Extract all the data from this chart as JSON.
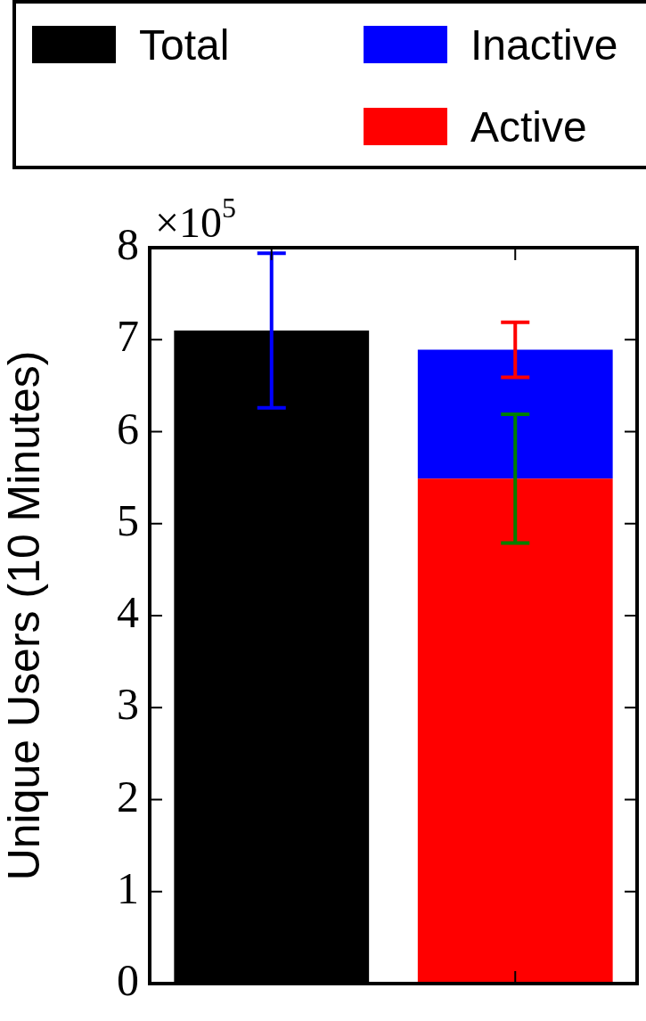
{
  "chart_data": {
    "type": "bar",
    "ylabel": "Unique Users (10 Minutes)",
    "annotations": [
      "×10$^{5}$"
    ],
    "categories": [
      null,
      null
    ],
    "stacked": true,
    "legend": "top",
    "grid": false,
    "ylim": [
      0,
      8
    ],
    "yticks": [
      0,
      1,
      2,
      3,
      4,
      5,
      6,
      7,
      8
    ],
    "series": [
      {
        "name": "Total",
        "color": "#000000",
        "values": [
          7.1,
          null
        ],
        "errors": [
          0.84,
          null
        ]
      },
      {
        "name": "Active",
        "color": "#ff0000",
        "values": [
          null,
          5.49
        ],
        "errors": [
          null,
          0.7
        ]
      },
      {
        "name": "Inactive",
        "color": "#0000ff",
        "values": [
          null,
          1.4
        ],
        "errors": [
          null,
          0.3
        ]
      }
    ]
  }
}
